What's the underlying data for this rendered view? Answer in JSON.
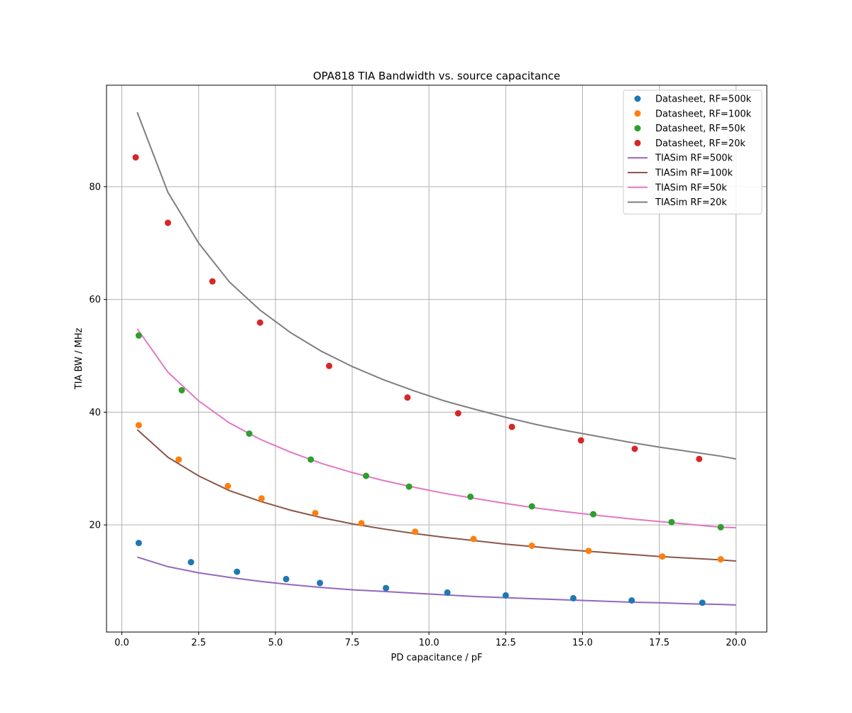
{
  "chart_data": {
    "type": "scatter",
    "title": "OPA818 TIA Bandwidth vs. source capacitance",
    "xlabel": "PD capacitance / pF",
    "ylabel": "TIA BW / MHz",
    "xlim": [
      -0.5,
      21.0
    ],
    "ylim": [
      1.0,
      98.0
    ],
    "xticks": [
      0.0,
      2.5,
      5.0,
      7.5,
      10.0,
      12.5,
      15.0,
      17.5,
      20.0
    ],
    "xtick_labels": [
      "0.0",
      "2.5",
      "5.0",
      "7.5",
      "10.0",
      "12.5",
      "15.0",
      "17.5",
      "20.0"
    ],
    "yticks": [
      20,
      40,
      60,
      80
    ],
    "ytick_labels": [
      "20",
      "40",
      "60",
      "80"
    ],
    "grid": true,
    "legend_position": "top-right",
    "scatter_series": [
      {
        "name": "Datasheet, RF=500k",
        "color": "#1f77b4",
        "x": [
          0.55,
          2.25,
          3.75,
          5.35,
          6.45,
          8.6,
          10.6,
          12.5,
          14.7,
          16.6,
          18.9
        ],
        "y": [
          16.8,
          13.4,
          11.7,
          10.4,
          9.7,
          8.8,
          8.0,
          7.5,
          7.0,
          6.6,
          6.2
        ]
      },
      {
        "name": "Datasheet, RF=100k",
        "color": "#ff7f0e",
        "x": [
          0.55,
          1.85,
          3.45,
          4.55,
          6.3,
          7.8,
          9.55,
          11.45,
          13.35,
          15.2,
          17.6,
          19.5
        ],
        "y": [
          37.7,
          31.6,
          26.9,
          24.7,
          22.1,
          20.3,
          18.8,
          17.5,
          16.3,
          15.4,
          14.4,
          13.9
        ]
      },
      {
        "name": "Datasheet, RF=50k",
        "color": "#2ca02c",
        "x": [
          0.55,
          1.95,
          4.15,
          6.15,
          7.95,
          9.35,
          11.35,
          13.35,
          15.35,
          17.9,
          19.5
        ],
        "y": [
          53.6,
          43.9,
          36.2,
          31.6,
          28.7,
          26.8,
          25.0,
          23.3,
          21.9,
          20.5,
          19.6
        ]
      },
      {
        "name": "Datasheet, RF=20k",
        "color": "#d62728",
        "x": [
          0.45,
          1.5,
          2.95,
          4.5,
          6.75,
          9.3,
          10.95,
          12.7,
          14.95,
          16.7,
          18.8
        ],
        "y": [
          85.2,
          73.6,
          63.2,
          55.9,
          48.2,
          42.6,
          39.8,
          37.4,
          35.0,
          33.5,
          31.7
        ]
      }
    ],
    "line_series": [
      {
        "name": "TIASim RF=500k",
        "color": "#9467bd",
        "x": [
          0.5,
          1.5,
          2.5,
          3.5,
          4.5,
          5.5,
          6.5,
          7.5,
          8.5,
          9.5,
          10.5,
          11.5,
          12.5,
          13.5,
          14.5,
          15.5,
          16.5,
          17.5,
          18.5,
          19.5,
          20.0
        ],
        "y": [
          14.3,
          12.6,
          11.5,
          10.7,
          10.0,
          9.4,
          8.9,
          8.5,
          8.2,
          7.9,
          7.6,
          7.3,
          7.1,
          6.9,
          6.7,
          6.5,
          6.3,
          6.2,
          6.0,
          5.9,
          5.8
        ]
      },
      {
        "name": "TIASim RF=100k",
        "color": "#8c564b",
        "x": [
          0.5,
          1.5,
          2.5,
          3.5,
          4.5,
          5.5,
          6.5,
          7.5,
          8.5,
          9.5,
          10.5,
          11.5,
          12.5,
          13.5,
          14.5,
          15.5,
          16.5,
          17.5,
          18.5,
          19.5,
          20.0
        ],
        "y": [
          36.9,
          32.0,
          28.7,
          26.1,
          24.2,
          22.6,
          21.3,
          20.2,
          19.3,
          18.5,
          17.8,
          17.2,
          16.6,
          16.1,
          15.6,
          15.2,
          14.8,
          14.4,
          14.1,
          13.8,
          13.6
        ]
      },
      {
        "name": "TIASim RF=50k",
        "color": "#e377c2",
        "x": [
          0.5,
          1.5,
          2.5,
          3.5,
          4.5,
          5.5,
          6.5,
          7.5,
          8.5,
          9.5,
          10.5,
          11.5,
          12.5,
          13.5,
          14.5,
          15.5,
          16.5,
          17.5,
          18.5,
          19.5,
          20.0
        ],
        "y": [
          54.8,
          47.1,
          42.0,
          38.1,
          35.2,
          32.9,
          30.9,
          29.3,
          27.9,
          26.7,
          25.6,
          24.7,
          23.8,
          23.0,
          22.3,
          21.7,
          21.1,
          20.6,
          20.1,
          19.6,
          19.5
        ]
      },
      {
        "name": "TIASim RF=20k",
        "color": "#7f7f7f",
        "x": [
          0.5,
          1.5,
          2.5,
          3.5,
          4.5,
          5.5,
          6.5,
          7.5,
          8.5,
          9.5,
          10.5,
          11.5,
          12.5,
          13.5,
          14.5,
          15.5,
          16.5,
          17.5,
          18.5,
          19.5,
          20.0
        ],
        "y": [
          93.2,
          79.0,
          70.0,
          63.1,
          58.1,
          54.1,
          50.8,
          48.1,
          45.8,
          43.8,
          42.0,
          40.5,
          39.1,
          37.8,
          36.7,
          35.7,
          34.7,
          33.8,
          33.0,
          32.2,
          31.7
        ]
      }
    ]
  }
}
